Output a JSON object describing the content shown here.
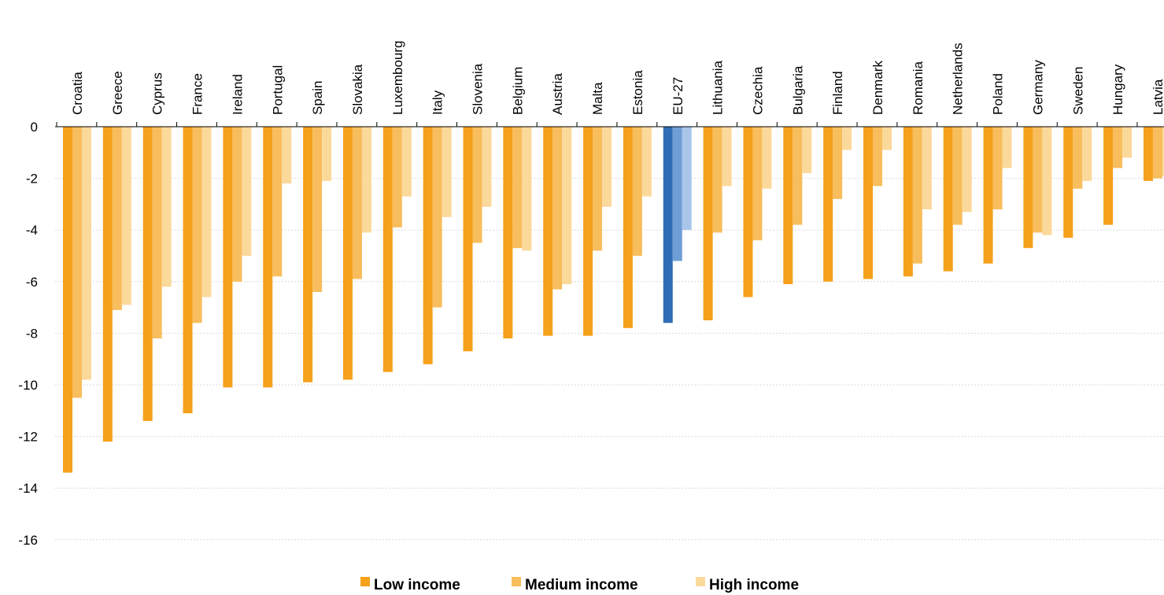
{
  "chart_data": {
    "type": "bar",
    "categories": [
      "Croatia",
      "Greece",
      "Cyprus",
      "France",
      "Ireland",
      "Portugal",
      "Spain",
      "Slovakia",
      "Luxembourg",
      "Italy",
      "Slovenia",
      "Belgium",
      "Austria",
      "Malta",
      "Estonia",
      "EU-27",
      "Lithuania",
      "Czechia",
      "Bulgaria",
      "Finland",
      "Denmark",
      "Romania",
      "Netherlands",
      "Poland",
      "Germany",
      "Sweden",
      "Hungary",
      "Latvia"
    ],
    "highlight_category": "EU-27",
    "series": [
      {
        "name": "Low income",
        "color": "#f5a11c",
        "highlight_color": "#2f6eb5",
        "values": [
          -13.4,
          -12.2,
          -11.4,
          -11.1,
          -10.1,
          -10.1,
          -9.9,
          -9.8,
          -9.5,
          -9.2,
          -8.7,
          -8.2,
          -8.1,
          -8.1,
          -7.8,
          -7.6,
          -7.5,
          -6.6,
          -6.1,
          -6.0,
          -5.9,
          -5.8,
          -5.6,
          -5.3,
          -4.7,
          -4.3,
          -3.8,
          -2.1
        ]
      },
      {
        "name": "Medium income",
        "color": "#f8bd5c",
        "highlight_color": "#6f9ed6",
        "values": [
          -10.5,
          -7.1,
          -8.2,
          -7.6,
          -6.0,
          -5.8,
          -6.4,
          -5.9,
          -3.9,
          -7.0,
          -4.5,
          -4.7,
          -6.3,
          -4.8,
          -5.0,
          -5.2,
          -4.1,
          -4.4,
          -3.8,
          -2.8,
          -2.3,
          -5.3,
          -3.8,
          -3.2,
          -4.1,
          -2.4,
          -1.6,
          -2.0
        ]
      },
      {
        "name": "High income",
        "color": "#fbd99b",
        "highlight_color": "#a9c6ea",
        "values": [
          -9.8,
          -6.9,
          -6.2,
          -6.6,
          -5.0,
          -2.2,
          -2.1,
          -4.1,
          -2.7,
          -3.5,
          -3.1,
          -4.8,
          -6.1,
          -3.1,
          -2.7,
          -4.0,
          -2.3,
          -2.4,
          -1.8,
          -0.9,
          -0.9,
          -3.2,
          -3.3,
          -1.6,
          -4.2,
          -2.1,
          -1.2,
          -1.9
        ]
      }
    ],
    "yticks": [
      "0",
      "-2",
      "-4",
      "-6",
      "-8",
      "-10",
      "-12",
      "-14",
      "-16"
    ],
    "ylim": [
      -16,
      0
    ],
    "grid": true,
    "legend_position": "bottom-center"
  }
}
